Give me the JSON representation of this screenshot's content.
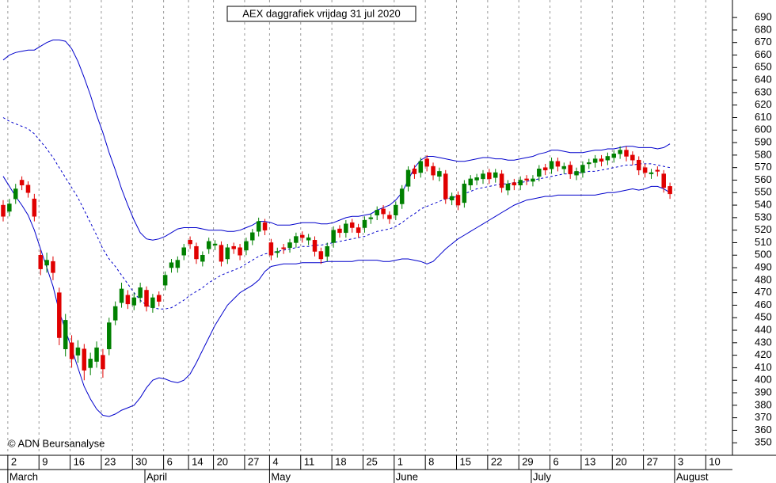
{
  "chart_data": {
    "type": "candlestick",
    "title": "AEX daggrafiek vrijdag 31 jul 2020",
    "source": "© ADN Beursanalyse",
    "categories": [
      null,
      "2",
      null,
      null,
      null,
      null,
      "9",
      null,
      null,
      null,
      null,
      "16",
      null,
      null,
      null,
      null,
      "23",
      null,
      null,
      null,
      null,
      "30",
      null,
      null,
      null,
      null,
      "6",
      null,
      null,
      null,
      "14",
      null,
      null,
      null,
      "20",
      null,
      null,
      null,
      null,
      "27",
      null,
      null,
      null,
      "4",
      null,
      null,
      null,
      null,
      "11",
      null,
      null,
      null,
      null,
      "18",
      null,
      null,
      null,
      null,
      "25",
      null,
      null,
      null,
      null,
      "1",
      null,
      null,
      null,
      null,
      "8",
      null,
      null,
      null,
      null,
      "15",
      null,
      null,
      null,
      null,
      "22",
      null,
      null,
      null,
      null,
      "29",
      null,
      null,
      null,
      null,
      "6",
      null,
      null,
      null,
      null,
      "13",
      null,
      null,
      null,
      null,
      "20",
      null,
      null,
      null,
      null,
      "27",
      null,
      null,
      null,
      null,
      "3",
      null,
      null,
      null,
      null,
      "10",
      null,
      null,
      null,
      null
    ],
    "month_labels": [
      null,
      "March",
      null,
      null,
      null,
      null,
      null,
      null,
      null,
      null,
      null,
      null,
      null,
      null,
      null,
      null,
      null,
      null,
      null,
      null,
      null,
      null,
      null,
      "April",
      null,
      null,
      null,
      null,
      null,
      null,
      null,
      null,
      null,
      null,
      null,
      null,
      null,
      null,
      null,
      null,
      null,
      null,
      null,
      "May",
      null,
      null,
      null,
      null,
      null,
      null,
      null,
      null,
      null,
      null,
      null,
      null,
      null,
      null,
      null,
      null,
      null,
      null,
      null,
      "June",
      null,
      null,
      null,
      null,
      null,
      null,
      null,
      null,
      null,
      null,
      null,
      null,
      null,
      null,
      null,
      null,
      null,
      null,
      null,
      null,
      null,
      "July",
      null,
      null,
      null,
      null,
      null,
      null,
      null,
      null,
      null,
      null,
      null,
      null,
      null,
      null,
      null,
      null,
      null,
      null,
      null,
      null,
      null,
      null,
      "August",
      null,
      null,
      null,
      null,
      null,
      null,
      null,
      null,
      null
    ],
    "open": [
      540,
      535,
      545,
      560,
      556,
      545,
      500,
      492,
      495,
      470,
      425,
      430,
      420,
      425,
      410,
      415,
      420,
      425,
      448,
      462,
      468,
      460,
      466,
      472,
      458,
      468,
      476,
      490,
      490,
      500,
      512,
      507,
      495,
      505,
      508,
      508,
      497,
      507,
      506,
      504,
      512,
      519,
      526,
      510,
      502,
      506,
      506,
      510,
      516,
      512,
      512,
      503,
      499,
      510,
      521,
      518,
      526,
      522,
      522,
      529,
      532,
      537,
      532,
      532,
      541,
      555,
      569,
      566,
      577,
      571,
      563,
      565,
      544,
      548,
      542,
      556,
      560,
      561,
      566,
      562,
      565,
      552,
      558,
      556,
      561,
      559,
      563,
      570,
      569,
      575,
      569,
      572,
      564,
      566,
      573,
      574,
      577,
      576,
      578,
      581,
      584,
      580,
      576,
      570,
      565,
      568,
      565,
      555,
      null,
      null,
      null,
      null,
      null,
      null,
      null,
      null,
      null,
      null
    ],
    "high": [
      544,
      545,
      557,
      563,
      559,
      549,
      504,
      502,
      499,
      474,
      453,
      436,
      432,
      429,
      422,
      431,
      425,
      450,
      463,
      478,
      472,
      470,
      478,
      475,
      469,
      471,
      487,
      497,
      499,
      509,
      515,
      510,
      503,
      514,
      512,
      511,
      509,
      510,
      509,
      514,
      521,
      530,
      529,
      513,
      506,
      509,
      513,
      518,
      519,
      517,
      515,
      506,
      510,
      523,
      524,
      528,
      529,
      525,
      531,
      533,
      539,
      540,
      535,
      543,
      556,
      571,
      572,
      578,
      580,
      574,
      570,
      568,
      550,
      551,
      560,
      564,
      565,
      568,
      569,
      569,
      568,
      560,
      561,
      563,
      564,
      564,
      572,
      573,
      578,
      578,
      574,
      575,
      570,
      575,
      577,
      580,
      580,
      582,
      584,
      587,
      587,
      583,
      579,
      573,
      569,
      571,
      568,
      558,
      null,
      null,
      null,
      null,
      null,
      null,
      null,
      null,
      null,
      null
    ],
    "low": [
      527,
      531,
      541,
      552,
      546,
      527,
      484,
      486,
      480,
      428,
      419,
      410,
      414,
      400,
      404,
      410,
      402,
      420,
      444,
      458,
      457,
      456,
      462,
      455,
      454,
      459,
      472,
      486,
      486,
      496,
      505,
      493,
      491,
      501,
      504,
      491,
      493,
      501,
      496,
      500,
      508,
      515,
      516,
      496,
      498,
      501,
      502,
      506,
      510,
      508,
      499,
      493,
      495,
      506,
      514,
      514,
      518,
      514,
      518,
      525,
      528,
      529,
      525,
      528,
      537,
      551,
      561,
      562,
      567,
      560,
      559,
      541,
      540,
      536,
      538,
      552,
      556,
      557,
      557,
      558,
      550,
      548,
      552,
      552,
      556,
      555,
      559,
      564,
      565,
      567,
      565,
      561,
      560,
      562,
      569,
      570,
      571,
      572,
      574,
      577,
      575,
      572,
      564,
      562,
      561,
      563,
      550,
      545,
      null,
      null,
      null,
      null,
      null,
      null,
      null,
      null,
      null,
      null
    ],
    "close": [
      531,
      541,
      553,
      556,
      550,
      531,
      489,
      496,
      486,
      434,
      448,
      417,
      426,
      408,
      417,
      426,
      409,
      446,
      459,
      473,
      461,
      466,
      474,
      459,
      466,
      463,
      484,
      494,
      496,
      506,
      509,
      497,
      500,
      511,
      509,
      495,
      506,
      505,
      500,
      511,
      518,
      527,
      520,
      500,
      503,
      505,
      510,
      515,
      514,
      514,
      503,
      497,
      507,
      520,
      518,
      525,
      522,
      518,
      528,
      530,
      536,
      533,
      529,
      540,
      553,
      568,
      565,
      575,
      571,
      564,
      567,
      545,
      547,
      540,
      557,
      561,
      562,
      565,
      561,
      566,
      554,
      557,
      556,
      560,
      560,
      561,
      569,
      568,
      575,
      571,
      571,
      565,
      567,
      572,
      574,
      577,
      575,
      579,
      581,
      584,
      579,
      576,
      568,
      566,
      566,
      567,
      554,
      549,
      null,
      null,
      null,
      null,
      null,
      null,
      null,
      null,
      null,
      null
    ],
    "up_color": "#008000",
    "down_color": "#e00000",
    "bands": [
      {
        "color": "#0000cc",
        "style": "solid",
        "values": [
          656,
          660,
          662,
          663,
          664,
          664,
          667,
          670,
          672,
          672,
          671,
          665,
          655,
          642,
          628,
          612,
          598,
          582,
          568,
          553,
          540,
          528,
          518,
          513,
          512,
          513,
          515,
          518,
          521,
          522,
          522,
          522,
          521,
          520,
          520,
          520,
          519,
          519,
          520,
          522,
          524,
          527,
          527,
          526,
          524,
          524,
          524,
          525,
          526,
          526,
          526,
          525,
          525,
          526,
          528,
          530,
          531,
          531,
          532,
          533,
          536,
          538,
          540,
          544,
          550,
          560,
          570,
          576,
          579,
          579,
          578,
          577,
          576,
          575,
          575,
          576,
          577,
          578,
          578,
          577,
          577,
          576,
          576,
          577,
          578,
          579,
          581,
          582,
          584,
          584,
          583,
          582,
          582,
          582,
          583,
          584,
          584,
          585,
          585,
          586,
          587,
          587,
          586,
          586,
          586,
          585,
          586,
          589,
          null,
          null,
          null,
          null,
          null,
          null,
          null,
          null,
          null,
          null
        ]
      },
      {
        "color": "#0000cc",
        "style": "dashed",
        "values": [
          610,
          607,
          605,
          603,
          601,
          597,
          591,
          585,
          578,
          570,
          562,
          554,
          546,
          536,
          526,
          516,
          505,
          497,
          491,
          484,
          477,
          470,
          464,
          460,
          458,
          457,
          457,
          458,
          461,
          464,
          468,
          471,
          474,
          478,
          481,
          484,
          486,
          488,
          490,
          493,
          496,
          499,
          501,
          502,
          503,
          504,
          505,
          506,
          507,
          507,
          508,
          508,
          509,
          510,
          511,
          512,
          513,
          514,
          515,
          517,
          519,
          520,
          521,
          523,
          526,
          530,
          533,
          537,
          539,
          541,
          543,
          545,
          546,
          547,
          549,
          551,
          553,
          554,
          555,
          556,
          557,
          557,
          558,
          558,
          559,
          560,
          561,
          562,
          563,
          564,
          565,
          565,
          566,
          566,
          567,
          567,
          568,
          569,
          570,
          571,
          572,
          572,
          573,
          573,
          573,
          572,
          571,
          570,
          null,
          null,
          null,
          null,
          null,
          null,
          null,
          null,
          null,
          null
        ]
      },
      {
        "color": "#0000cc",
        "style": "solid",
        "values": [
          563,
          555,
          547,
          540,
          532,
          520,
          505,
          490,
          475,
          455,
          440,
          425,
          410,
          395,
          385,
          377,
          372,
          371,
          373,
          376,
          378,
          380,
          386,
          394,
          400,
          402,
          401,
          399,
          398,
          400,
          405,
          414,
          424,
          434,
          444,
          452,
          460,
          465,
          470,
          473,
          476,
          480,
          487,
          491,
          492,
          493,
          493,
          493,
          494,
          494,
          494,
          494,
          495,
          495,
          495,
          495,
          495,
          496,
          496,
          496,
          496,
          495,
          495,
          496,
          497,
          497,
          496,
          495,
          493,
          495,
          500,
          505,
          509,
          513,
          516,
          519,
          522,
          525,
          528,
          531,
          534,
          537,
          540,
          542,
          544,
          545,
          546,
          547,
          547,
          548,
          548,
          548,
          548,
          548,
          548,
          548,
          549,
          550,
          550,
          551,
          552,
          553,
          552,
          553,
          555,
          555,
          553,
          550,
          null,
          null,
          null,
          null,
          null,
          null,
          null,
          null,
          null,
          null
        ]
      }
    ],
    "ylim": [
      340,
      704
    ],
    "yticks": [
      350,
      360,
      370,
      380,
      390,
      400,
      410,
      420,
      430,
      440,
      450,
      460,
      470,
      480,
      490,
      500,
      510,
      520,
      530,
      540,
      550,
      560,
      570,
      580,
      590,
      600,
      610,
      620,
      630,
      640,
      650,
      660,
      670,
      680,
      690
    ],
    "grid": true
  }
}
